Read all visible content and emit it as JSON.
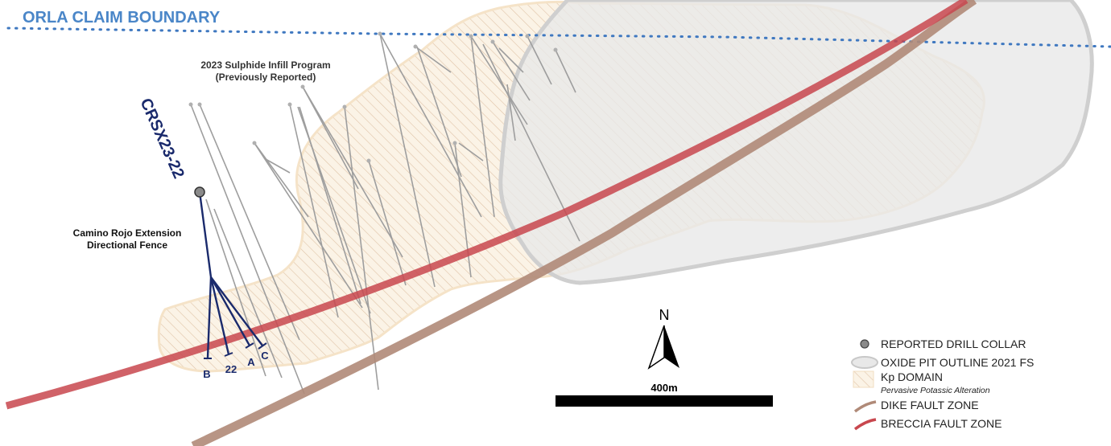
{
  "boundary": {
    "label": "ORLA CLAIM BOUNDARY",
    "color": "#4a86c8"
  },
  "infill": {
    "title_line1": "2023 Sulphide Infill Program",
    "title_line2": "(Previously Reported)"
  },
  "fence": {
    "title_line1": "Camino Rojo Extension",
    "title_line2": "Directional Fence"
  },
  "hole": {
    "id": "CRSX23-22",
    "color": "#1a2a6c"
  },
  "branches": [
    {
      "label": "B"
    },
    {
      "label": "22"
    },
    {
      "label": "A"
    },
    {
      "label": "C"
    }
  ],
  "north": {
    "label": "N"
  },
  "scale": {
    "label": "400m"
  },
  "legend": {
    "items": [
      {
        "label": "REPORTED DRILL COLLAR",
        "icon": "circle-icon"
      },
      {
        "label": "OXIDE PIT OUTLINE 2021 FS",
        "icon": "pit-outline-icon"
      },
      {
        "label": "Kp DOMAIN",
        "sublabel": "Pervasive Potassic Alteration",
        "icon": "hatched-box-icon"
      },
      {
        "label": "DIKE FAULT ZONE",
        "icon": "dike-line-icon",
        "color": "#b08a78"
      },
      {
        "label": "BRECCIA FAULT ZONE",
        "icon": "breccia-line-icon",
        "color": "#c8474e"
      }
    ]
  }
}
